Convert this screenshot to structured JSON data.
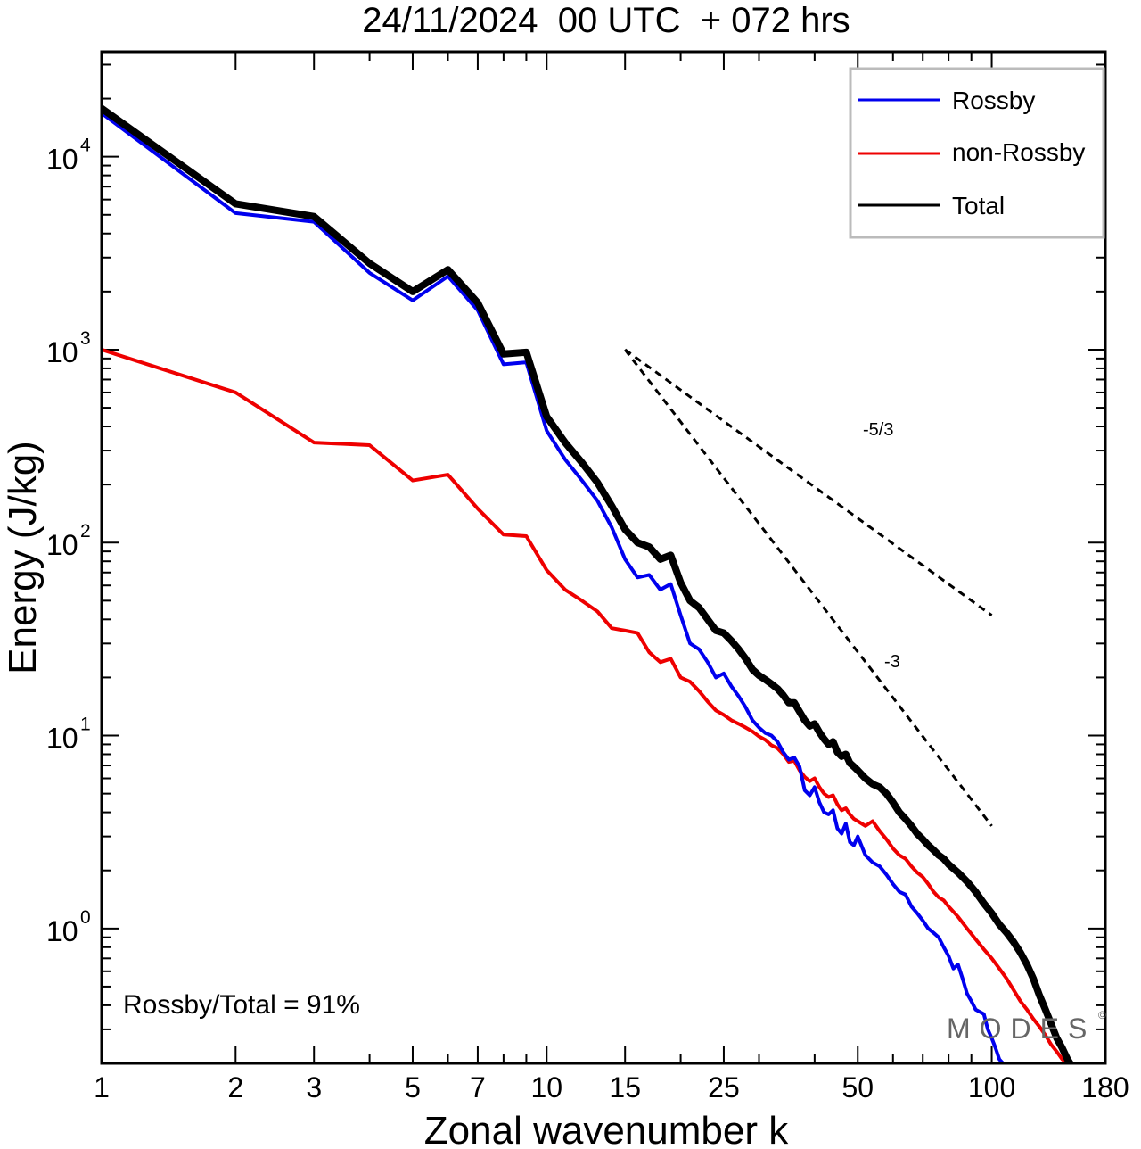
{
  "chart_data": {
    "type": "line",
    "title": "24/11/2024  00 UTC  + 072 hrs",
    "xlabel": "Zonal wavenumber k",
    "ylabel": "Energy (J/kg)",
    "xscale": "log",
    "yscale": "log",
    "xlim": [
      1,
      180
    ],
    "ylim": [
      0.2,
      35000
    ],
    "xticks": [
      1,
      2,
      3,
      5,
      7,
      10,
      15,
      25,
      50,
      100,
      180
    ],
    "xtick_labels": [
      "1",
      "2",
      "3",
      "5",
      "7",
      "10",
      "15",
      "25",
      "50",
      "100",
      "180"
    ],
    "yticks": [
      {
        "value": 10000,
        "base": "10",
        "exp": "4"
      },
      {
        "value": 1000,
        "base": "10",
        "exp": "3"
      },
      {
        "value": 100,
        "base": "10",
        "exp": "2"
      },
      {
        "value": 10,
        "base": "10",
        "exp": "1"
      },
      {
        "value": 1,
        "base": "10",
        "exp": "0"
      }
    ],
    "legend_position": "top-right",
    "grid": false,
    "series": [
      {
        "name": "Rossby",
        "color": "#0000ee",
        "points": [
          [
            1,
            16800
          ],
          [
            2,
            5100
          ],
          [
            3,
            4600
          ],
          [
            4,
            2500
          ],
          [
            5,
            1800
          ],
          [
            6,
            2400
          ],
          [
            7,
            1600
          ],
          [
            8,
            840
          ],
          [
            9,
            860
          ],
          [
            10,
            380
          ],
          [
            11,
            270
          ],
          [
            12,
            210
          ],
          [
            13,
            165
          ],
          [
            14,
            120
          ],
          [
            15,
            82
          ],
          [
            16,
            66
          ],
          [
            17,
            68
          ],
          [
            18,
            57
          ],
          [
            19,
            61
          ],
          [
            20,
            42
          ],
          [
            21,
            30
          ],
          [
            22,
            28
          ],
          [
            23,
            24
          ],
          [
            24,
            20
          ],
          [
            25,
            21
          ],
          [
            26,
            18
          ],
          [
            27,
            16
          ],
          [
            28,
            14
          ],
          [
            29,
            12
          ],
          [
            30,
            11
          ],
          [
            31,
            10.3
          ],
          [
            32,
            10
          ],
          [
            33,
            9.3
          ],
          [
            34,
            8.2
          ],
          [
            35,
            7.5
          ],
          [
            36,
            7.7
          ],
          [
            37,
            6.9
          ],
          [
            38,
            5.2
          ],
          [
            39,
            4.9
          ],
          [
            40,
            5.4
          ],
          [
            41,
            4.5
          ],
          [
            42,
            4.0
          ],
          [
            43,
            3.9
          ],
          [
            44,
            4.1
          ],
          [
            45,
            3.3
          ],
          [
            46,
            3.1
          ],
          [
            47,
            3.5
          ],
          [
            48,
            2.8
          ],
          [
            49,
            2.7
          ],
          [
            50,
            3.0
          ],
          [
            52,
            2.4
          ],
          [
            54,
            2.2
          ],
          [
            56,
            2.1
          ],
          [
            58,
            1.9
          ],
          [
            60,
            1.7
          ],
          [
            62,
            1.55
          ],
          [
            64,
            1.5
          ],
          [
            66,
            1.3
          ],
          [
            68,
            1.2
          ],
          [
            70,
            1.1
          ],
          [
            72,
            1.0
          ],
          [
            74,
            0.95
          ],
          [
            76,
            0.9
          ],
          [
            78,
            0.8
          ],
          [
            80,
            0.72
          ],
          [
            82,
            0.62
          ],
          [
            84,
            0.65
          ],
          [
            86,
            0.55
          ],
          [
            88,
            0.46
          ],
          [
            90,
            0.42
          ],
          [
            92,
            0.38
          ],
          [
            94,
            0.37
          ],
          [
            96,
            0.36
          ],
          [
            98,
            0.3
          ],
          [
            100,
            0.27
          ],
          [
            102,
            0.24
          ],
          [
            104,
            0.21
          ],
          [
            106,
            0.2
          ]
        ]
      },
      {
        "name": "non-Rossby",
        "color": "#ee0000",
        "points": [
          [
            1,
            1000
          ],
          [
            2,
            600
          ],
          [
            3,
            330
          ],
          [
            4,
            320
          ],
          [
            5,
            210
          ],
          [
            6,
            225
          ],
          [
            7,
            150
          ],
          [
            8,
            110
          ],
          [
            9,
            108
          ],
          [
            10,
            72
          ],
          [
            11,
            57
          ],
          [
            12,
            50
          ],
          [
            13,
            44
          ],
          [
            14,
            36
          ],
          [
            15,
            35
          ],
          [
            16,
            34
          ],
          [
            17,
            27
          ],
          [
            18,
            24
          ],
          [
            19,
            25
          ],
          [
            20,
            20
          ],
          [
            21,
            19
          ],
          [
            22,
            17
          ],
          [
            23,
            15
          ],
          [
            24,
            13.5
          ],
          [
            25,
            12.8
          ],
          [
            26,
            12
          ],
          [
            27,
            11.5
          ],
          [
            28,
            11
          ],
          [
            29,
            10.5
          ],
          [
            30,
            9.9
          ],
          [
            31,
            9.5
          ],
          [
            32,
            8.9
          ],
          [
            33,
            8.6
          ],
          [
            34,
            8.0
          ],
          [
            35,
            7.3
          ],
          [
            36,
            7.4
          ],
          [
            37,
            6.6
          ],
          [
            38,
            6.1
          ],
          [
            39,
            5.8
          ],
          [
            40,
            6.0
          ],
          [
            41,
            5.4
          ],
          [
            42,
            5.0
          ],
          [
            43,
            4.8
          ],
          [
            44,
            4.9
          ],
          [
            45,
            4.4
          ],
          [
            46,
            4.1
          ],
          [
            47,
            4.2
          ],
          [
            48,
            3.9
          ],
          [
            49,
            3.7
          ],
          [
            50,
            3.6
          ],
          [
            52,
            3.4
          ],
          [
            54,
            3.6
          ],
          [
            56,
            3.2
          ],
          [
            58,
            2.9
          ],
          [
            60,
            2.6
          ],
          [
            62,
            2.4
          ],
          [
            64,
            2.3
          ],
          [
            66,
            2.1
          ],
          [
            68,
            1.95
          ],
          [
            70,
            1.85
          ],
          [
            72,
            1.7
          ],
          [
            74,
            1.55
          ],
          [
            76,
            1.45
          ],
          [
            78,
            1.4
          ],
          [
            80,
            1.3
          ],
          [
            84,
            1.15
          ],
          [
            88,
            1.0
          ],
          [
            92,
            0.88
          ],
          [
            96,
            0.78
          ],
          [
            100,
            0.7
          ],
          [
            104,
            0.62
          ],
          [
            108,
            0.55
          ],
          [
            112,
            0.48
          ],
          [
            116,
            0.42
          ],
          [
            120,
            0.38
          ],
          [
            124,
            0.34
          ],
          [
            128,
            0.31
          ],
          [
            132,
            0.28
          ],
          [
            136,
            0.25
          ],
          [
            140,
            0.23
          ],
          [
            144,
            0.21
          ],
          [
            148,
            0.2
          ]
        ]
      },
      {
        "name": "Total",
        "color": "#000000",
        "points": [
          [
            1,
            17800
          ],
          [
            2,
            5700
          ],
          [
            3,
            4900
          ],
          [
            4,
            2800
          ],
          [
            5,
            2000
          ],
          [
            6,
            2600
          ],
          [
            7,
            1750
          ],
          [
            8,
            950
          ],
          [
            9,
            970
          ],
          [
            10,
            450
          ],
          [
            11,
            330
          ],
          [
            12,
            260
          ],
          [
            13,
            205
          ],
          [
            14,
            155
          ],
          [
            15,
            117
          ],
          [
            16,
            100
          ],
          [
            17,
            95
          ],
          [
            18,
            82
          ],
          [
            19,
            86
          ],
          [
            20,
            62
          ],
          [
            21,
            50
          ],
          [
            22,
            46
          ],
          [
            23,
            40
          ],
          [
            24,
            35
          ],
          [
            25,
            34
          ],
          [
            26,
            31
          ],
          [
            27,
            28
          ],
          [
            28,
            25
          ],
          [
            29,
            22
          ],
          [
            30,
            20.5
          ],
          [
            31,
            19.5
          ],
          [
            32,
            18.5
          ],
          [
            33,
            17.5
          ],
          [
            34,
            16.2
          ],
          [
            35,
            14.8
          ],
          [
            36,
            14.8
          ],
          [
            37,
            13.3
          ],
          [
            38,
            12.0
          ],
          [
            39,
            11.2
          ],
          [
            40,
            11.5
          ],
          [
            41,
            10.4
          ],
          [
            42,
            9.6
          ],
          [
            43,
            9.0
          ],
          [
            44,
            9.3
          ],
          [
            45,
            8.2
          ],
          [
            46,
            7.8
          ],
          [
            47,
            8.0
          ],
          [
            48,
            7.2
          ],
          [
            49,
            6.9
          ],
          [
            50,
            6.6
          ],
          [
            52,
            6.0
          ],
          [
            54,
            5.6
          ],
          [
            56,
            5.4
          ],
          [
            58,
            5.0
          ],
          [
            60,
            4.5
          ],
          [
            62,
            4.0
          ],
          [
            64,
            3.7
          ],
          [
            66,
            3.4
          ],
          [
            68,
            3.1
          ],
          [
            70,
            2.9
          ],
          [
            72,
            2.7
          ],
          [
            74,
            2.55
          ],
          [
            76,
            2.4
          ],
          [
            78,
            2.3
          ],
          [
            80,
            2.15
          ],
          [
            84,
            1.95
          ],
          [
            88,
            1.75
          ],
          [
            92,
            1.55
          ],
          [
            96,
            1.35
          ],
          [
            100,
            1.2
          ],
          [
            104,
            1.05
          ],
          [
            108,
            0.95
          ],
          [
            112,
            0.85
          ],
          [
            116,
            0.75
          ],
          [
            120,
            0.65
          ],
          [
            124,
            0.55
          ],
          [
            128,
            0.45
          ],
          [
            132,
            0.38
          ],
          [
            136,
            0.32
          ],
          [
            140,
            0.27
          ],
          [
            144,
            0.24
          ],
          [
            148,
            0.21
          ],
          [
            150,
            0.2
          ]
        ]
      }
    ],
    "reference_lines": [
      {
        "label": "-5/3",
        "x0": 15,
        "y0": 1000,
        "x1": 100,
        "y1": 42
      },
      {
        "label": "-3",
        "x0": 15,
        "y0": 1000,
        "x1": 100,
        "y1": 3.4
      }
    ],
    "annotation": "Rossby/Total = 91%",
    "watermark": "MODES",
    "watermark_symbol": "©"
  }
}
